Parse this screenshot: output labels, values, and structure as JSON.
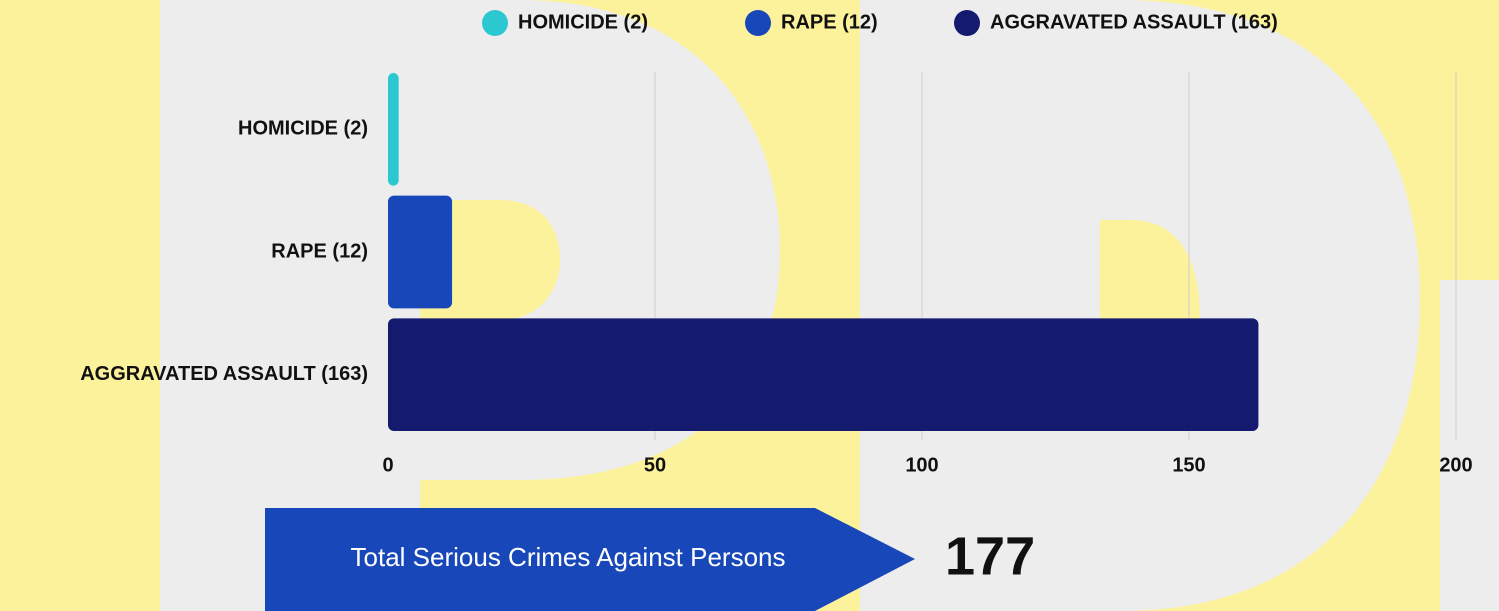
{
  "chart_data": {
    "type": "bar",
    "orientation": "horizontal",
    "categories": [
      "HOMICIDE (2)",
      "RAPE (12)",
      "AGGRAVATED ASSAULT (163)"
    ],
    "values": [
      2,
      12,
      163
    ],
    "colors": [
      "#2cc8d2",
      "#1747b8",
      "#141a6e"
    ],
    "xlim": [
      0,
      200
    ],
    "xticks": [
      0,
      50,
      100,
      150,
      200
    ],
    "grid": true,
    "legend": "top"
  },
  "total": {
    "label": "Total Serious Crimes Against Persons",
    "value": 177
  }
}
